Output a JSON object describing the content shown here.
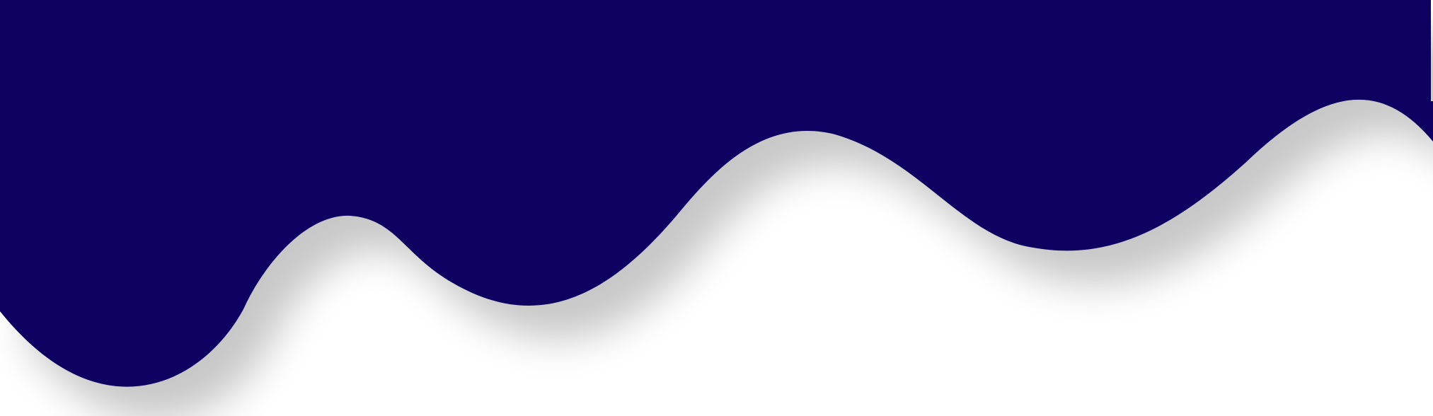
{
  "background_color": "#ffffff",
  "wave": {
    "fill_color": "#110660",
    "shadow_color": "#000000"
  }
}
